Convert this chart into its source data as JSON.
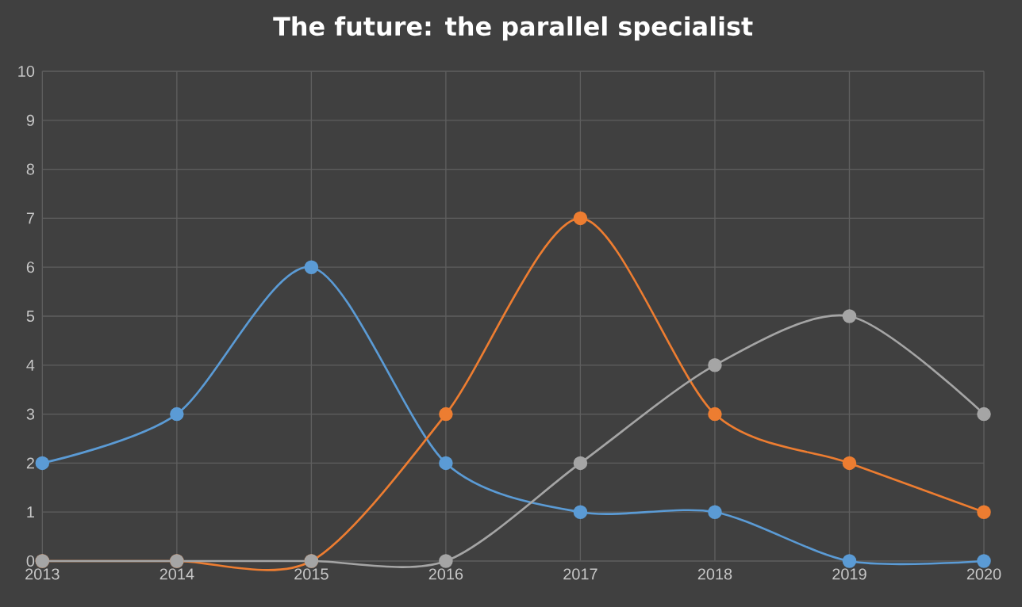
{
  "chart_data": {
    "type": "line",
    "title": "The future: the parallel specialist",
    "x": [
      2013,
      2014,
      2015,
      2016,
      2017,
      2018,
      2019,
      2020
    ],
    "series": [
      {
        "color": "#5b9bd5",
        "values": [
          2,
          3,
          6,
          2,
          1,
          1,
          0,
          0
        ]
      },
      {
        "color": "#ed7d31",
        "values": [
          0,
          0,
          0,
          3,
          7,
          3,
          2,
          1
        ]
      },
      {
        "color": "#a5a5a5",
        "values": [
          0,
          0,
          0,
          0,
          2,
          4,
          5,
          3
        ]
      }
    ],
    "xlim": [
      2013,
      2020
    ],
    "xticks": [
      2013,
      2014,
      2015,
      2016,
      2017,
      2018,
      2019,
      2020
    ],
    "ylim": [
      0,
      10
    ],
    "yticks": [
      0,
      1,
      2,
      3,
      4,
      5,
      6,
      7,
      8,
      9,
      10
    ],
    "grid": true,
    "marker": "circle",
    "line_style": "solid"
  }
}
